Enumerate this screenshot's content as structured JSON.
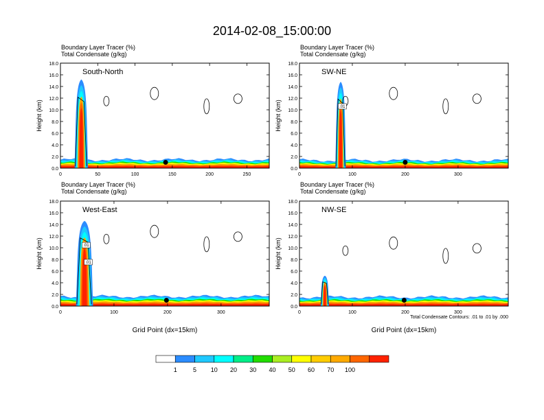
{
  "title": "2014-02-08_15:00:00",
  "chart_data": [
    {
      "type": "heatmap",
      "heading_top": "Boundary Layer Tracer   (%)",
      "heading_bottom": "Total Condensate   (g/kg)",
      "label": "South-North",
      "ylabel": "Height (km)",
      "xlabel": "",
      "xlim": [
        0,
        280
      ],
      "ylim": [
        0,
        18
      ],
      "x_ticks": [
        "0",
        "50",
        "100",
        "150",
        "200",
        "250"
      ],
      "y_ticks": [
        "0.0",
        "2.0",
        "4.0",
        "6.0",
        "8.0",
        "10.0",
        "12.0",
        "14.0",
        "16.0",
        "18.0"
      ],
      "marker": {
        "x": 141,
        "y": 1.0
      },
      "plume": {
        "x": 28,
        "top": 15.2,
        "half_width": 9
      },
      "boundary_layer_top": 1.3,
      "contour_labels": []
    },
    {
      "type": "heatmap",
      "heading_top": "Boundary Layer Tracer   (%)",
      "heading_bottom": "Total Condensate   (g/kg)",
      "label": "SW-NE",
      "ylabel": "Height (km)",
      "xlabel": "",
      "xlim": [
        0,
        395
      ],
      "ylim": [
        0,
        18
      ],
      "x_ticks": [
        "0",
        "100",
        "200",
        "300"
      ],
      "y_ticks": [
        "0.0",
        "2.0",
        "4.0",
        "6.0",
        "8.0",
        "10.0",
        "12.0",
        "14.0",
        "16.0",
        "18.0"
      ],
      "marker": {
        "x": 200,
        "y": 1.0
      },
      "plume": {
        "x": 78,
        "top": 14.8,
        "half_width": 10
      },
      "boundary_layer_top": 1.2,
      "contour_labels": [
        ".01"
      ]
    },
    {
      "type": "heatmap",
      "heading_top": "Boundary Layer Tracer   (%)",
      "heading_bottom": "Total Condensate   (g/kg)",
      "label": "West-East",
      "ylabel": "Height (km)",
      "xlabel": "Grid Point (dx=15km)",
      "xlim": [
        0,
        390
      ],
      "ylim": [
        0,
        18
      ],
      "x_ticks": [
        "0",
        "100",
        "200",
        "300"
      ],
      "y_ticks": [
        "0.0",
        "2.0",
        "4.0",
        "6.0",
        "8.0",
        "10.0",
        "12.0",
        "14.0",
        "16.0",
        "18.0"
      ],
      "marker": {
        "x": 198,
        "y": 1.0
      },
      "plume": {
        "x": 45,
        "top": 14.6,
        "half_width": 16
      },
      "boundary_layer_top": 1.5,
      "contour_labels": [
        ".01",
        ".01"
      ]
    },
    {
      "type": "heatmap",
      "heading_top": "Boundary Layer Tracer   (%)",
      "heading_bottom": "Total Condensate   (g/kg)",
      "label": "NW-SE",
      "ylabel": "Height (km)",
      "xlabel": "Grid Point (dx=15km)",
      "xlim": [
        0,
        395
      ],
      "ylim": [
        0,
        18
      ],
      "x_ticks": [
        "0",
        "100",
        "200",
        "300"
      ],
      "y_ticks": [
        "0.0",
        "2.0",
        "4.0",
        "6.0",
        "8.0",
        "10.0",
        "12.0",
        "14.0",
        "16.0",
        "18.0"
      ],
      "marker": {
        "x": 198,
        "y": 1.0
      },
      "plume": {
        "x": 48,
        "top": 5.2,
        "half_width": 8
      },
      "boundary_layer_top": 1.4,
      "contour_labels": [],
      "note": "Total Condensate Contours: .01 to .01 by .000"
    }
  ],
  "colorbar": {
    "labels": [
      "1",
      "5",
      "10",
      "20",
      "30",
      "40",
      "50",
      "60",
      "70",
      "100"
    ],
    "colors": [
      "#ffffff",
      "#2b8cff",
      "#1fc8ff",
      "#00ffff",
      "#00ee88",
      "#22dd00",
      "#aaee22",
      "#ffff00",
      "#ffcc00",
      "#ffaa00",
      "#ff6600",
      "#ff2200"
    ]
  }
}
